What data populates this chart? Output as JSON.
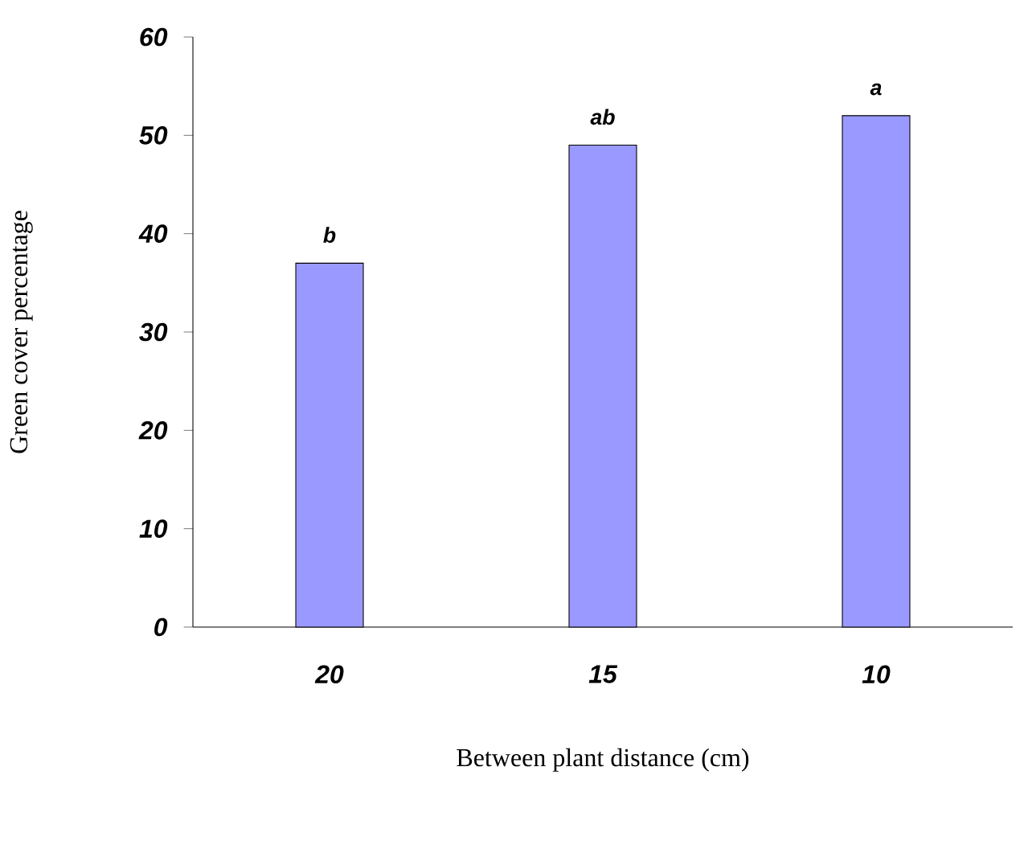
{
  "chart_data": {
    "type": "bar",
    "xlabel": "Between plant distance (cm)",
    "ylabel": "Green cover percentage",
    "categories": [
      "20",
      "15",
      "10"
    ],
    "values": [
      37,
      49,
      52
    ],
    "color": "#9999ff",
    "ylim": [
      0,
      60
    ],
    "yticks": [
      0,
      10,
      20,
      30,
      40,
      50,
      60
    ],
    "annotations": [
      {
        "text": "b",
        "x": "20",
        "y": 37
      },
      {
        "text": "ab",
        "x": "15",
        "y": 49
      },
      {
        "text": "a",
        "x": "10",
        "y": 52
      }
    ]
  }
}
